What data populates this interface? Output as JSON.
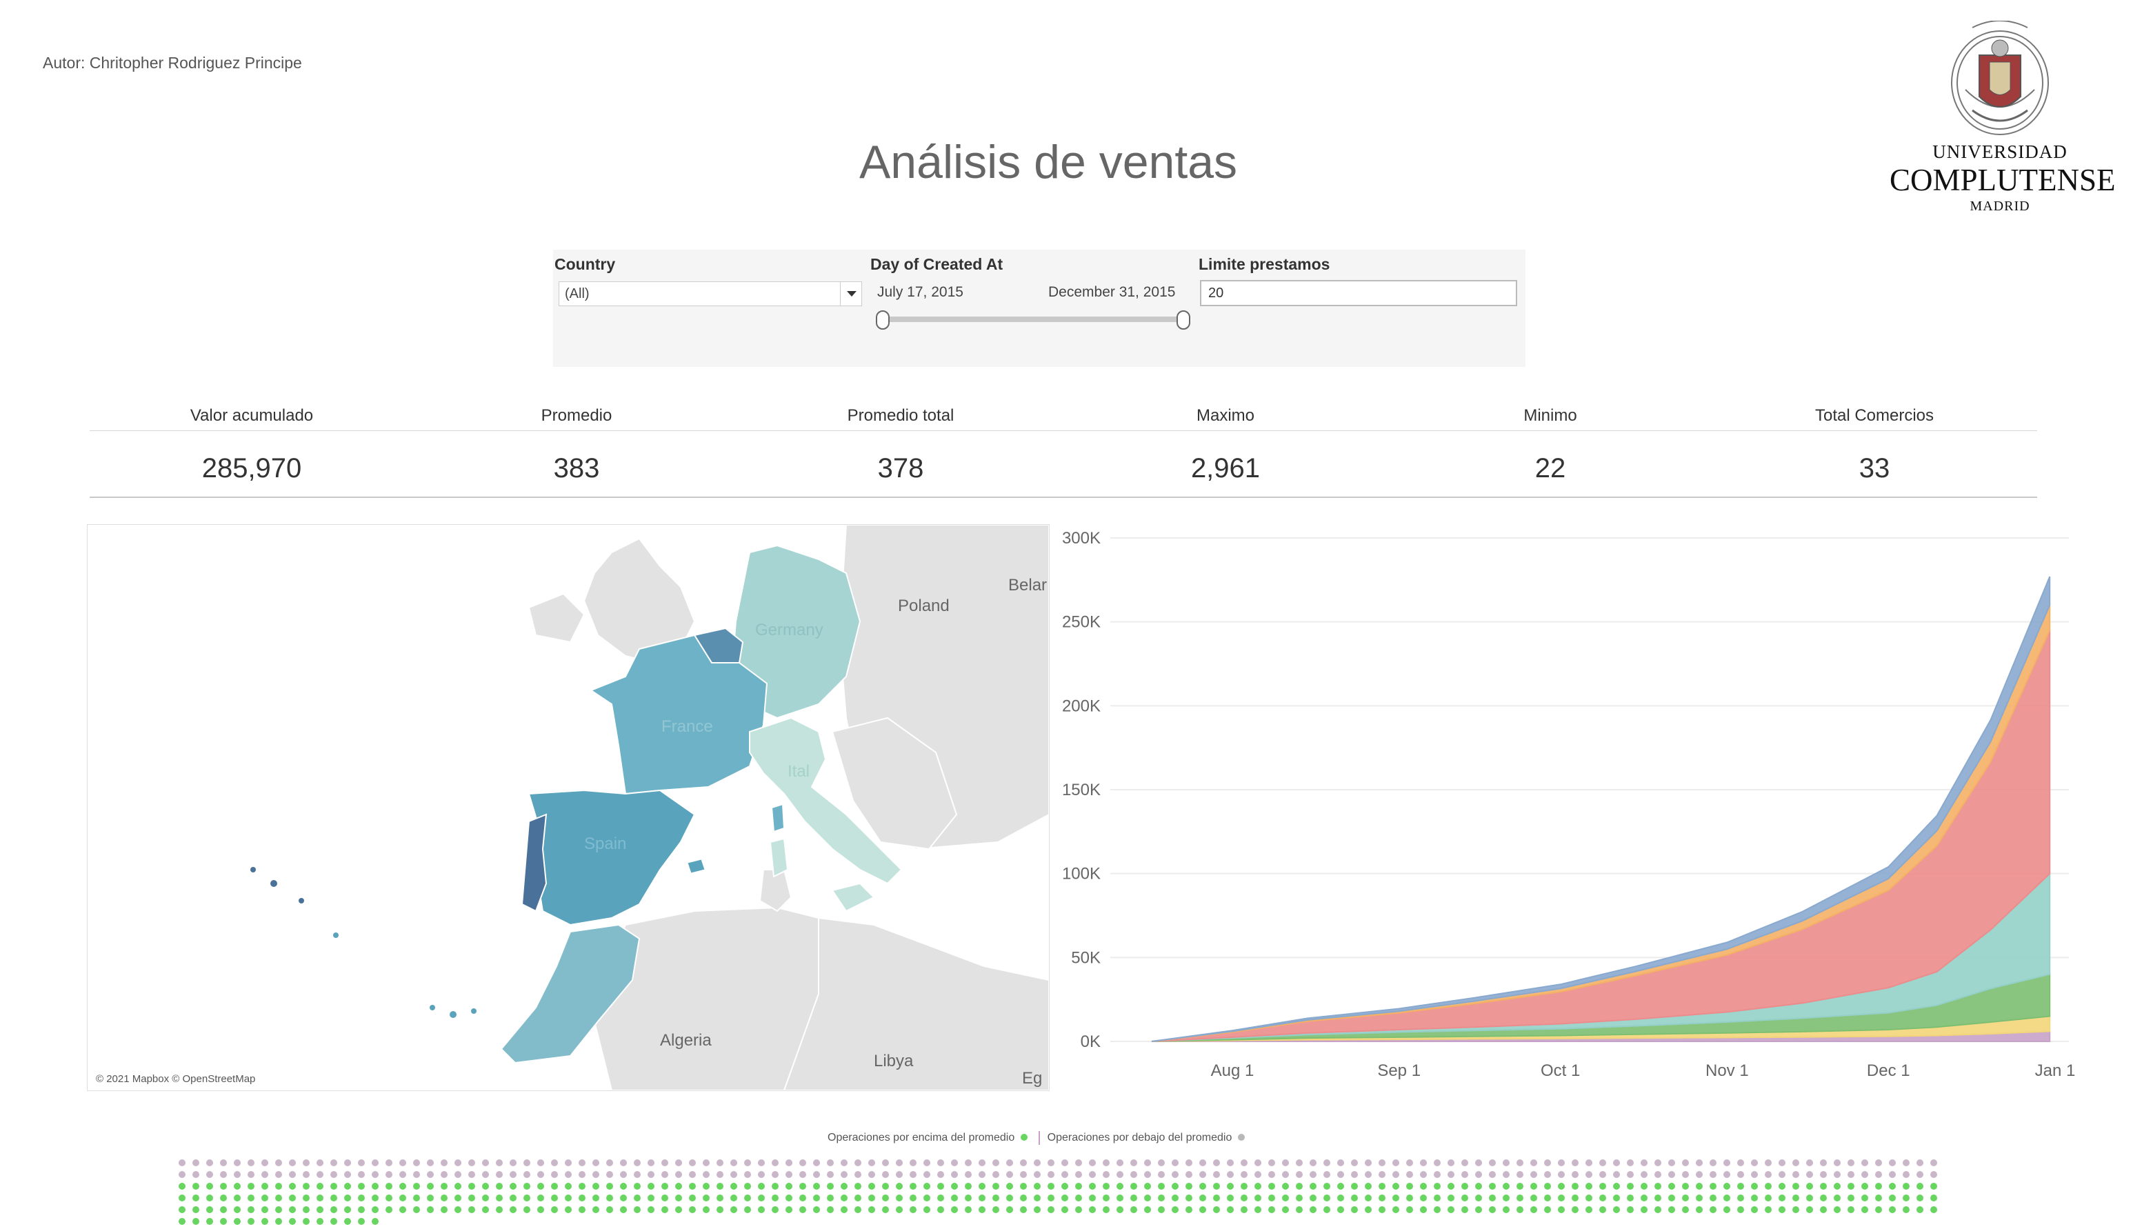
{
  "author": "Autor: Chritopher Rodriguez Principe",
  "logo": {
    "line1": "UNIVERSIDAD",
    "line2": "COMPLUTENSE",
    "line3": "MADRID"
  },
  "title": "Análisis de ventas",
  "filters": {
    "country_label": "Country",
    "country_value": "(All)",
    "date_label": "Day of Created At",
    "date_start": "July 17, 2015",
    "date_end": "December 31, 2015",
    "limit_label": "Limite prestamos",
    "limit_value": "20"
  },
  "kpis": [
    {
      "label": "Valor acumulado",
      "value": "285,970"
    },
    {
      "label": "Promedio",
      "value": "383"
    },
    {
      "label": "Promedio total",
      "value": "378"
    },
    {
      "label": "Maximo",
      "value": "2,961"
    },
    {
      "label": "Minimo",
      "value": "22"
    },
    {
      "label": "Total Comercios",
      "value": "33"
    }
  ],
  "map": {
    "credit": "© 2021 Mapbox © OpenStreetMap",
    "labels": [
      "Poland",
      "Belar",
      "Germany",
      "France",
      "Ital",
      "Spain",
      "Algeria",
      "Libya",
      "Eg"
    ],
    "colors": {
      "portugal": "#4a7199",
      "spain": "#5aa3bd",
      "france": "#6db2c7",
      "morocco": "#82bccb",
      "belgium": "#5a8fb0",
      "germany": "#a6d4d2",
      "italy": "#c4e3dc",
      "other": "#e2e2e2"
    }
  },
  "chart_data": {
    "type": "area",
    "x": [
      "2015-07-17",
      "2015-08-01",
      "2015-08-15",
      "2015-09-01",
      "2015-09-15",
      "2015-10-01",
      "2015-10-15",
      "2015-11-01",
      "2015-11-15",
      "2015-12-01",
      "2015-12-10",
      "2015-12-20",
      "2015-12-31"
    ],
    "x_ticks": [
      "Aug 1",
      "Sep 1",
      "Oct 1",
      "Nov 1",
      "Dec 1",
      "Jan 1"
    ],
    "y_ticks": [
      "0K",
      "50K",
      "100K",
      "150K",
      "200K",
      "250K",
      "300K"
    ],
    "ylim": [
      0,
      300000
    ],
    "stacked": true,
    "series": [
      {
        "color": "#c6a2c8",
        "values": [
          0,
          500,
          1000,
          1200,
          1500,
          1700,
          2000,
          2300,
          2600,
          3000,
          3500,
          4500,
          6000
        ]
      },
      {
        "color": "#f3d57a",
        "values": [
          0,
          500,
          1000,
          1300,
          1500,
          1800,
          2200,
          2700,
          3200,
          4000,
          5000,
          7000,
          9000
        ]
      },
      {
        "color": "#7dbf72",
        "values": [
          0,
          1000,
          2000,
          3000,
          3500,
          4000,
          5000,
          6500,
          8000,
          10000,
          13000,
          20000,
          25000
        ]
      },
      {
        "color": "#94d0c8",
        "values": [
          0,
          500,
          1000,
          1500,
          2000,
          3000,
          4000,
          6000,
          9000,
          15000,
          20000,
          35000,
          60000
        ]
      },
      {
        "color": "#ec8c8c",
        "values": [
          0,
          3000,
          7000,
          10000,
          14000,
          19000,
          26000,
          34000,
          44000,
          58000,
          75000,
          100000,
          145000
        ]
      },
      {
        "color": "#f4b166",
        "values": [
          0,
          500,
          800,
          1000,
          1500,
          2000,
          2500,
          3500,
          5000,
          7000,
          9000,
          12000,
          15000
        ]
      },
      {
        "color": "#8aa9cf",
        "values": [
          0,
          500,
          1000,
          1500,
          2000,
          2500,
          3000,
          4000,
          5500,
          7000,
          9000,
          13000,
          17000
        ]
      }
    ]
  },
  "legend": {
    "above": "Operaciones por encima del promedio",
    "below": "Operaciones por  debajo del promedio",
    "above_color": "#67d55f",
    "below_color": "#b8b8b8"
  },
  "dots": {
    "rows": [
      {
        "color": "#c9b6c9",
        "count": 128
      },
      {
        "color": "#c9b6c9",
        "count": 128
      },
      {
        "color": "#67d55f",
        "count": 128
      },
      {
        "color": "#67d55f",
        "count": 128
      },
      {
        "color": "#67d55f",
        "count": 128
      },
      {
        "color": "#67d55f",
        "count": 15
      }
    ]
  }
}
